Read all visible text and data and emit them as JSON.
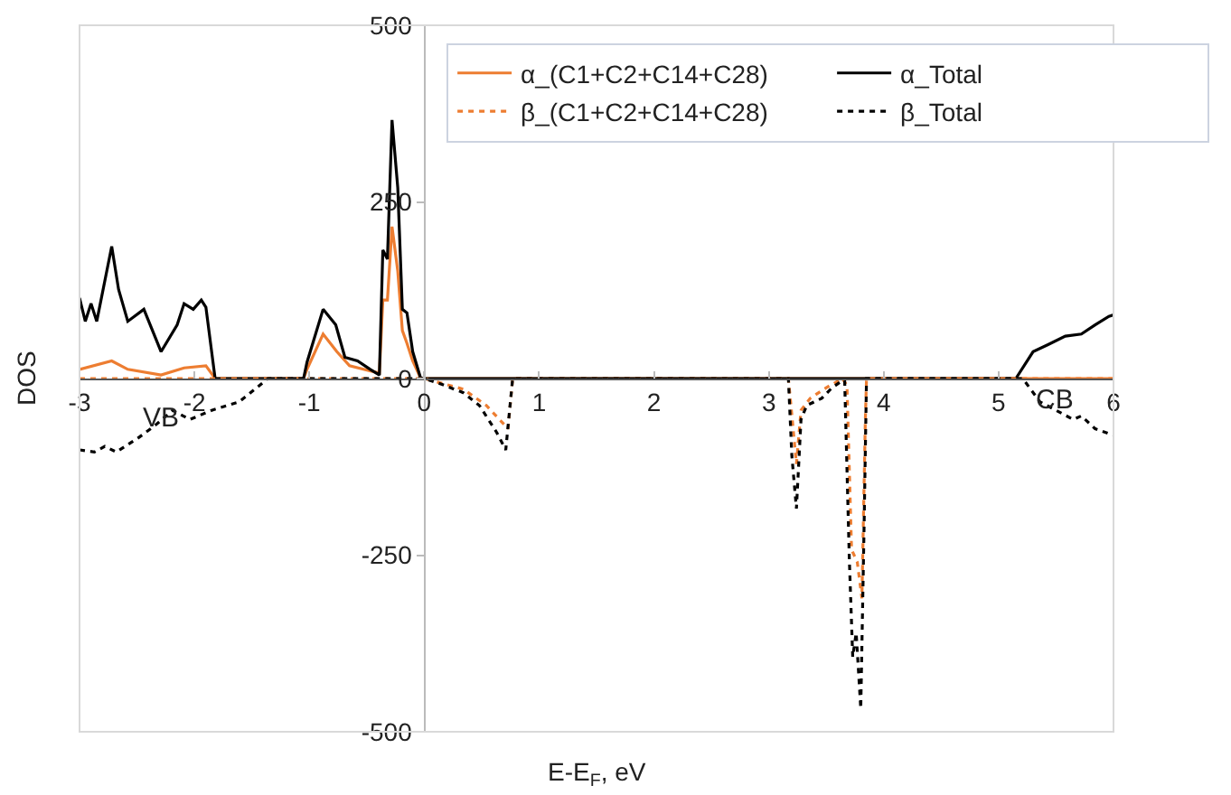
{
  "chart_data": {
    "type": "line",
    "xlabel": "E-E$_{F}$, eV",
    "ylabel": "DOS",
    "xlim": [
      -3,
      6
    ],
    "ylim": [
      -500,
      500
    ],
    "xticks": [
      -3,
      -2,
      -1,
      0,
      1,
      2,
      3,
      4,
      5,
      6
    ],
    "yticks": [
      -500,
      -250,
      0,
      250,
      500
    ],
    "grid": false,
    "legend": "top",
    "marker": "none",
    "annotations": [
      "VB",
      "CB"
    ],
    "series": [
      {
        "name": "α_(C1+C2+C14+C28)",
        "color": "#ed7d31",
        "line_style": "solid",
        "x": [
          -3,
          -2.72,
          -2.58,
          -2.29,
          -2.09,
          -1.9,
          -1.82,
          -1.05,
          -1.02,
          -0.88,
          -0.76,
          -0.65,
          -0.45,
          -0.39,
          -0.36,
          -0.32,
          -0.28,
          -0.23,
          -0.19,
          -0.15,
          -0.1,
          -0.03,
          6
        ],
        "values": [
          13,
          25,
          13,
          5,
          15,
          18,
          0,
          0,
          13,
          63,
          38,
          18,
          10,
          8,
          111,
          111,
          215,
          152,
          68,
          50,
          25,
          0,
          0
        ]
      },
      {
        "name": "α_Total",
        "color": "#000000",
        "line_style": "solid",
        "x": [
          -3,
          -2.95,
          -2.9,
          -2.85,
          -2.72,
          -2.66,
          -2.58,
          -2.44,
          -2.29,
          -2.15,
          -2.09,
          -2.01,
          -1.94,
          -1.9,
          -1.82,
          -1.05,
          -1.02,
          -0.88,
          -0.77,
          -0.69,
          -0.58,
          -0.47,
          -0.39,
          -0.36,
          -0.32,
          -0.28,
          -0.23,
          -0.19,
          -0.15,
          -0.1,
          -0.03,
          5.15,
          5.3,
          5.43,
          5.58,
          5.72,
          5.84,
          5.96,
          6
        ],
        "values": [
          114,
          81,
          106,
          81,
          187,
          126,
          81,
          98,
          38,
          76,
          106,
          98,
          111,
          101,
          0,
          0,
          23,
          98,
          76,
          30,
          25,
          13,
          5,
          182,
          169,
          366,
          270,
          98,
          93,
          38,
          0,
          0,
          38,
          48,
          60,
          63,
          76,
          88,
          90
        ]
      },
      {
        "name": "β_(C1+C2+C14+C28)",
        "color": "#ed7d31",
        "line_style": "dotted",
        "x": [
          -3,
          0,
          0.34,
          0.54,
          0.73,
          0.77,
          3.17,
          3.2,
          3.24,
          3.28,
          3.36,
          3.5,
          3.64,
          3.68,
          3.72,
          3.77,
          3.81,
          3.84,
          3.85,
          6
        ],
        "values": [
          0,
          0,
          -15,
          -38,
          -71,
          0,
          0,
          -51,
          -121,
          -45,
          -28,
          -13,
          0,
          -10,
          -242,
          -260,
          -311,
          -58,
          0,
          0
        ]
      },
      {
        "name": "β_Total",
        "color": "#000000",
        "line_style": "dotted",
        "x": [
          -3,
          -2.87,
          -2.78,
          -2.68,
          -2.48,
          -2.34,
          -2.19,
          -2.04,
          -1.85,
          -1.61,
          -1.36,
          0,
          0.15,
          0.34,
          0.48,
          0.63,
          0.71,
          0.77,
          3.17,
          3.2,
          3.24,
          3.28,
          3.33,
          3.46,
          3.55,
          3.64,
          3.66,
          3.7,
          3.73,
          3.76,
          3.8,
          3.83,
          3.85,
          5.21,
          5.36,
          5.5,
          5.65,
          5.72,
          5.84,
          5.96,
          6
        ],
        "values": [
          -101,
          -104,
          -96,
          -104,
          -83,
          -66,
          -45,
          -58,
          -45,
          -33,
          0,
          0,
          -8,
          -20,
          -38,
          -76,
          -101,
          0,
          0,
          -109,
          -184,
          -58,
          -38,
          -28,
          -13,
          -3,
          -3,
          -253,
          -394,
          -360,
          -467,
          -200,
          0,
          0,
          -33,
          -45,
          -58,
          -53,
          -71,
          -78,
          -80
        ]
      }
    ]
  }
}
